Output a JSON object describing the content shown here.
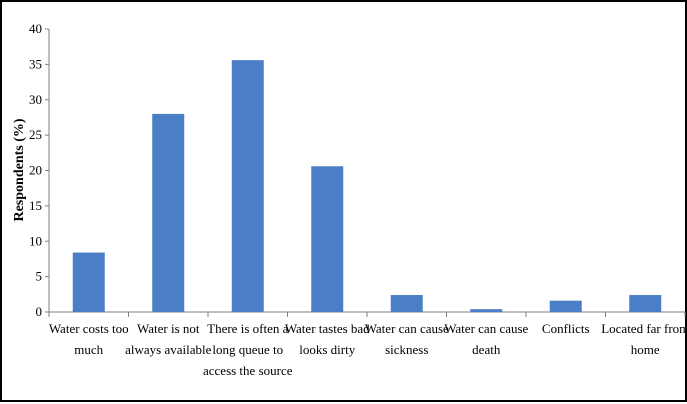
{
  "chart_data": {
    "type": "bar",
    "categories": [
      [
        "Water costs too",
        "much"
      ],
      [
        "Water is not",
        "always available"
      ],
      [
        "There is often a",
        "long queue to",
        "access the source"
      ],
      [
        "Water tastes bad",
        "looks dirty"
      ],
      [
        "Water can cause",
        "sickness"
      ],
      [
        "Water can cause",
        "death"
      ],
      [
        "Conflicts"
      ],
      [
        "Located far from",
        "home"
      ]
    ],
    "values": [
      8.4,
      28.0,
      35.6,
      20.6,
      2.4,
      0.4,
      1.6,
      2.4
    ],
    "title": "",
    "xlabel": "",
    "ylabel": "Respondents (%)",
    "ylim": [
      0,
      40
    ],
    "yticks": [
      0,
      5,
      10,
      15,
      20,
      25,
      30,
      35,
      40
    ],
    "grid": false,
    "legend": "none",
    "bar_color": "#4a7fc8"
  }
}
